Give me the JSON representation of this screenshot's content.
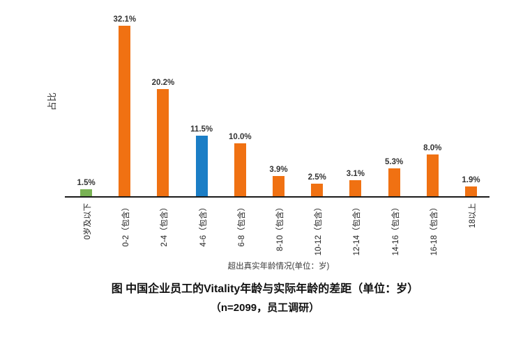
{
  "background": "#ffffff",
  "chart_data": {
    "type": "bar",
    "title": "图 中国企业员工的Vitality年龄与实际年龄的差距（单位：岁）",
    "subtitle": "（n=2099，员工调研）",
    "xlabel": "超出真实年龄情况(单位：岁)",
    "ylabel": "占比",
    "categories": [
      "0岁及以下",
      "0-2（包含）",
      "2-4（包含）",
      "4-6（包含）",
      "6-8（包含）",
      "8-10（包含）",
      "10-12（包含）",
      "12-14（包含）",
      "14-16（包含）",
      "16-18（包含）",
      "18以上"
    ],
    "values": [
      1.5,
      32.1,
      20.2,
      11.5,
      10.0,
      3.9,
      2.5,
      3.1,
      5.3,
      8.0,
      1.9
    ],
    "value_labels": [
      "1.5%",
      "32.1%",
      "20.2%",
      "11.5%",
      "10.0%",
      "3.9%",
      "2.5%",
      "3.1%",
      "5.3%",
      "8.0%",
      "1.9%"
    ],
    "bar_colors": [
      "#79B254",
      "#F07112",
      "#F07112",
      "#1B7EC6",
      "#F07112",
      "#F07112",
      "#F07112",
      "#F07112",
      "#F07112",
      "#F07112",
      "#F07112"
    ],
    "colors": {
      "bar_default_orange": "#F07112",
      "bar_highlight_green": "#79B254",
      "bar_highlight_blue": "#1B7EC6",
      "axis_line": "#1a1a1a",
      "text": "#333333"
    },
    "ylim": [
      0,
      35
    ],
    "grid": false,
    "legend": false
  }
}
